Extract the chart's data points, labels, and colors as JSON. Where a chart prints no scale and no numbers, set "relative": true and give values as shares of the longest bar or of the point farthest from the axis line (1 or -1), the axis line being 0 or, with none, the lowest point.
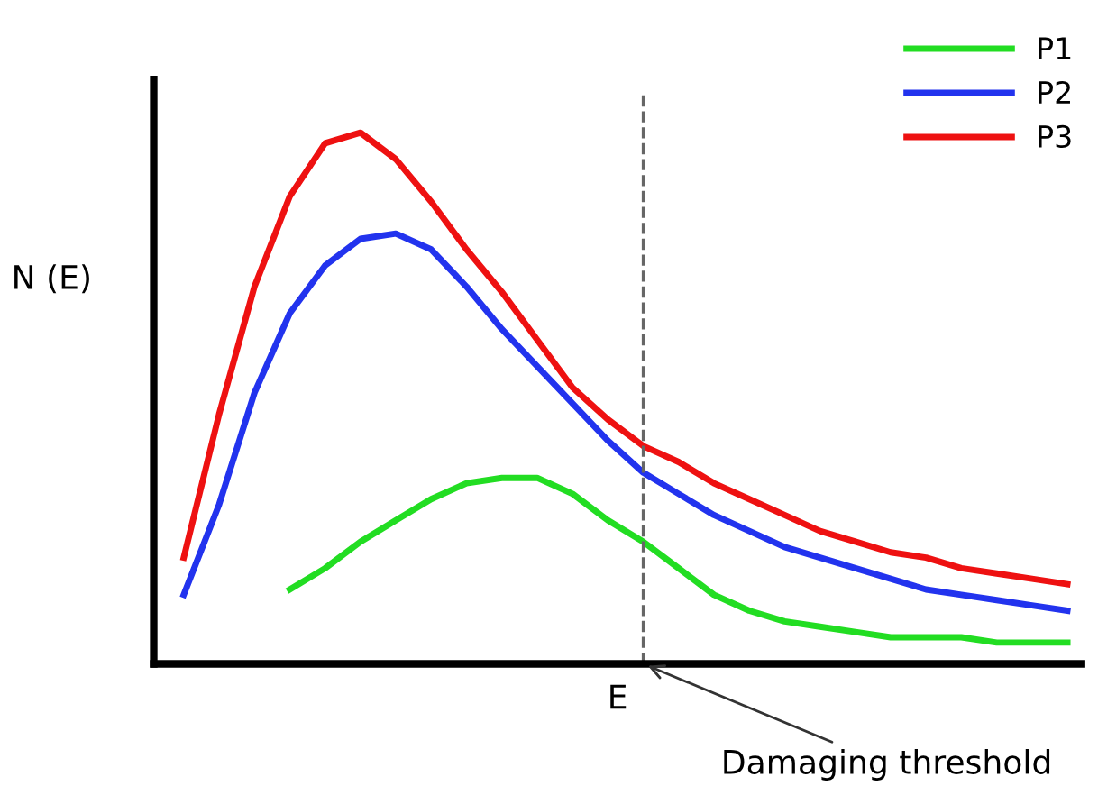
{
  "chart_data": {
    "type": "line",
    "relative": true,
    "xlabel": "E",
    "ylabel": "N (E)",
    "categories": [
      null,
      null,
      null,
      null,
      null,
      null,
      null,
      null,
      null,
      null,
      null,
      null,
      null,
      null,
      null,
      null,
      null,
      null,
      null,
      null,
      null,
      null,
      null,
      null,
      null,
      null
    ],
    "series": [
      {
        "name": "P1",
        "color": "#22dd22",
        "values": [
          null,
          null,
          null,
          0.14,
          0.18,
          0.23,
          0.27,
          0.31,
          0.34,
          0.35,
          0.35,
          0.32,
          0.27,
          0.23,
          0.18,
          0.13,
          0.1,
          0.08,
          0.07,
          0.06,
          0.05,
          0.05,
          0.05,
          0.04,
          0.04,
          0.04
        ]
      },
      {
        "name": "P2",
        "color": "#2233ee",
        "values": [
          0.13,
          0.3,
          0.51,
          0.66,
          0.75,
          0.8,
          0.81,
          0.78,
          0.71,
          0.63,
          0.56,
          0.49,
          0.42,
          0.36,
          0.32,
          0.28,
          0.25,
          0.22,
          0.2,
          0.18,
          0.16,
          0.14,
          0.13,
          0.12,
          0.11,
          0.1
        ]
      },
      {
        "name": "P3",
        "color": "#ee1111",
        "values": [
          0.2,
          0.47,
          0.71,
          0.88,
          0.98,
          1.0,
          0.95,
          0.87,
          0.78,
          0.7,
          0.61,
          0.52,
          0.46,
          0.41,
          0.38,
          0.34,
          0.31,
          0.28,
          0.25,
          0.23,
          0.21,
          0.2,
          0.18,
          0.17,
          0.16,
          0.15
        ]
      }
    ],
    "annotations": [
      "Damaging threshold"
    ],
    "legend": "top right",
    "marker": "none",
    "line_style": "solid",
    "tick_labels": false
  }
}
